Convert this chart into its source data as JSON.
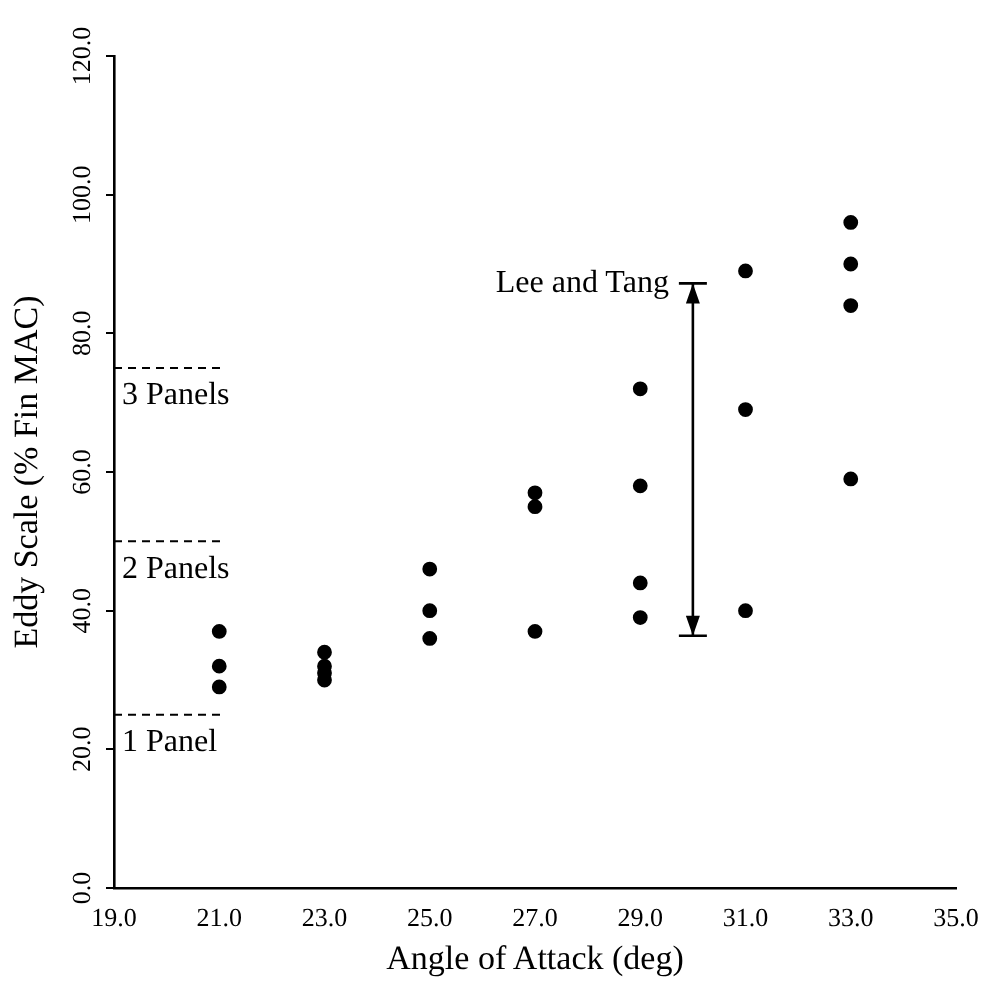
{
  "chart_data": {
    "type": "scatter",
    "xlabel": "Angle of Attack (deg)",
    "ylabel": "Eddy Scale (% Fin MAC)",
    "xlim": [
      19,
      35
    ],
    "ylim": [
      0,
      120
    ],
    "xticks": [
      {
        "value": 19,
        "label": "19.0"
      },
      {
        "value": 21,
        "label": "21.0"
      },
      {
        "value": 23,
        "label": "23.0"
      },
      {
        "value": 25,
        "label": "25.0"
      },
      {
        "value": 27,
        "label": "27.0"
      },
      {
        "value": 29,
        "label": "29.0"
      },
      {
        "value": 31,
        "label": "31.0"
      },
      {
        "value": 33,
        "label": "33.0"
      },
      {
        "value": 35,
        "label": "35.0"
      }
    ],
    "yticks": [
      {
        "value": 0,
        "label": "0.0"
      },
      {
        "value": 20,
        "label": "20.0"
      },
      {
        "value": 40,
        "label": "40.0"
      },
      {
        "value": 60,
        "label": "60.0"
      },
      {
        "value": 80,
        "label": "80.0"
      },
      {
        "value": 100,
        "label": "100.0"
      },
      {
        "value": 120,
        "label": "120.0"
      }
    ],
    "series": [
      {
        "color": "#000000",
        "x": [
          21,
          21,
          21,
          23,
          23,
          23,
          23,
          25,
          25,
          25,
          27,
          27,
          27,
          29,
          29,
          29,
          29,
          31,
          31,
          31,
          33,
          33,
          33,
          33
        ],
        "values": [
          37,
          32,
          29,
          34,
          32,
          31,
          30,
          46,
          40,
          36,
          57,
          55,
          37,
          72,
          58,
          44,
          39,
          89,
          69,
          40,
          96,
          90,
          84,
          59
        ]
      }
    ],
    "annotations": [
      "Lee and Tang"
    ],
    "ref_lines": [
      {
        "axis": "y",
        "value": 75,
        "label": "3 Panels",
        "line_style": "dashed"
      },
      {
        "axis": "y",
        "value": 50,
        "label": "2 Panels",
        "line_style": "dashed"
      },
      {
        "axis": "y",
        "value": 25,
        "label": "1 Panel",
        "line_style": "dashed"
      }
    ],
    "marker": "circle",
    "grid": false,
    "legend": false
  }
}
